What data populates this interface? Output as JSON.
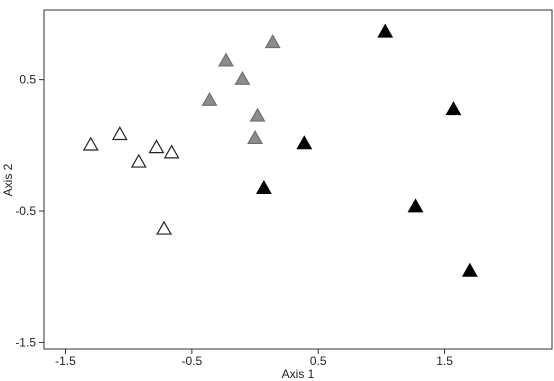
{
  "chart_data": {
    "type": "scatter",
    "title": "",
    "xlabel": "Axis 1",
    "ylabel": "Axis 2",
    "xlim": [
      -1.67,
      2.35
    ],
    "ylim": [
      -1.55,
      1.03
    ],
    "xticks": [
      -1.5,
      -0.5,
      0.5,
      1.5
    ],
    "xtick_labels": [
      "-1.5",
      "-0.5",
      "0.5",
      "1.5"
    ],
    "yticks": [
      0.5,
      -0.5,
      -1.5
    ],
    "ytick_labels": [
      "0.5",
      "-0.5",
      "-1.5"
    ],
    "grid": false,
    "legend": "none",
    "series": [
      {
        "marker": "triangle-open",
        "color": "#ffffff",
        "stroke": "#222222",
        "points": [
          {
            "x": -1.3,
            "y": 0.0
          },
          {
            "x": -1.07,
            "y": 0.08
          },
          {
            "x": -0.92,
            "y": -0.13
          },
          {
            "x": -0.78,
            "y": -0.02
          },
          {
            "x": -0.66,
            "y": -0.06
          },
          {
            "x": -0.72,
            "y": -0.64
          }
        ]
      },
      {
        "marker": "triangle-filled",
        "color": "#8c8c8c",
        "stroke": "#6e6e6e",
        "points": [
          {
            "x": 0.14,
            "y": 0.78
          },
          {
            "x": -0.23,
            "y": 0.64
          },
          {
            "x": -0.1,
            "y": 0.5
          },
          {
            "x": -0.36,
            "y": 0.34
          },
          {
            "x": 0.02,
            "y": 0.22
          },
          {
            "x": 0.0,
            "y": 0.05
          }
        ]
      },
      {
        "marker": "triangle-filled",
        "color": "#000000",
        "stroke": "#000000",
        "points": [
          {
            "x": 1.03,
            "y": 0.86
          },
          {
            "x": 1.57,
            "y": 0.27
          },
          {
            "x": 0.39,
            "y": 0.01
          },
          {
            "x": 0.07,
            "y": -0.33
          },
          {
            "x": 1.27,
            "y": -0.47
          },
          {
            "x": 1.7,
            "y": -0.96
          }
        ]
      }
    ]
  }
}
